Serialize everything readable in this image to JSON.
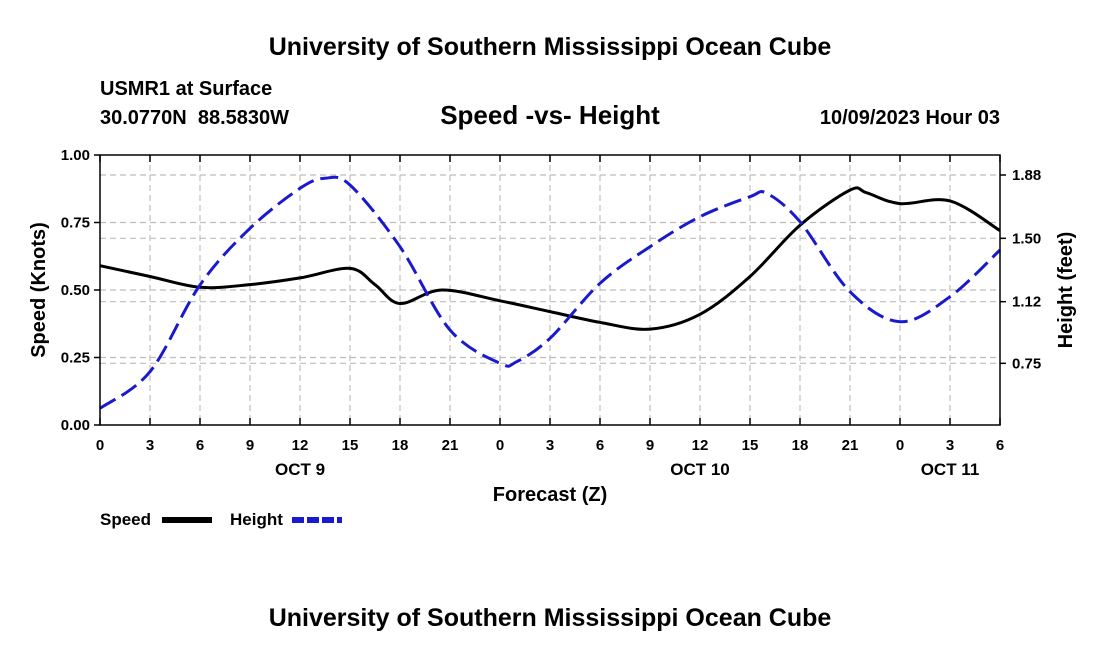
{
  "page": {
    "main_title": "University of Southern Mississippi Ocean Cube",
    "footer_title": "University of Southern Mississippi Ocean Cube"
  },
  "chart_data": {
    "type": "line",
    "title": "Speed -vs- Height",
    "station": "USMR1 at Surface",
    "coordinates": "30.0770N  88.5830W",
    "timestamp": "10/09/2023 Hour 03",
    "xlabel": "Forecast (Z)",
    "ylabel_left": "Speed (Knots)",
    "ylabel_right": "Height (feet)",
    "x_range": [
      0,
      54
    ],
    "x_unit": "hours from 00Z Oct 9",
    "x_ticks": [
      {
        "x": 0,
        "label": "0"
      },
      {
        "x": 3,
        "label": "3"
      },
      {
        "x": 6,
        "label": "6"
      },
      {
        "x": 9,
        "label": "9"
      },
      {
        "x": 12,
        "label": "12"
      },
      {
        "x": 15,
        "label": "15"
      },
      {
        "x": 18,
        "label": "18"
      },
      {
        "x": 21,
        "label": "21"
      },
      {
        "x": 24,
        "label": "0"
      },
      {
        "x": 27,
        "label": "3"
      },
      {
        "x": 30,
        "label": "6"
      },
      {
        "x": 33,
        "label": "9"
      },
      {
        "x": 36,
        "label": "12"
      },
      {
        "x": 39,
        "label": "15"
      },
      {
        "x": 42,
        "label": "18"
      },
      {
        "x": 45,
        "label": "21"
      },
      {
        "x": 48,
        "label": "0"
      },
      {
        "x": 51,
        "label": "3"
      },
      {
        "x": 54,
        "label": "6"
      }
    ],
    "date_labels": [
      {
        "x": 12,
        "label": "OCT 9"
      },
      {
        "x": 36,
        "label": "OCT 10"
      },
      {
        "x": 51,
        "label": "OCT 11"
      }
    ],
    "y_left": {
      "range": [
        0,
        1.0
      ],
      "ticks": [
        {
          "v": 0.0,
          "label": "0.00"
        },
        {
          "v": 0.25,
          "label": "0.25"
        },
        {
          "v": 0.5,
          "label": "0.50"
        },
        {
          "v": 0.75,
          "label": "0.75"
        },
        {
          "v": 1.0,
          "label": "1.00"
        }
      ]
    },
    "y_right": {
      "range": [
        0.38,
        2.0
      ],
      "ticks": [
        {
          "v": 0.75,
          "label": "0.75"
        },
        {
          "v": 1.12,
          "label": "1.12"
        },
        {
          "v": 1.5,
          "label": "1.50"
        },
        {
          "v": 1.88,
          "label": "1.88"
        }
      ]
    },
    "series": [
      {
        "name": "Speed",
        "axis": "left",
        "color": "#000000",
        "dash": "solid",
        "x": [
          0,
          3,
          6,
          9,
          12,
          15,
          16.5,
          18,
          20.5,
          24,
          27,
          30,
          33,
          36,
          39,
          42,
          45,
          46,
          48,
          51,
          54
        ],
        "values": [
          0.59,
          0.55,
          0.51,
          0.52,
          0.545,
          0.58,
          0.52,
          0.45,
          0.5,
          0.46,
          0.42,
          0.38,
          0.355,
          0.41,
          0.55,
          0.74,
          0.87,
          0.86,
          0.82,
          0.83,
          0.72
        ]
      },
      {
        "name": "Height",
        "axis": "right",
        "color": "#1a1acd",
        "dash": "dashed",
        "x": [
          0,
          3,
          6,
          9,
          12,
          13.5,
          15,
          18,
          21,
          24,
          25,
          27,
          30,
          33,
          36,
          39,
          40,
          42,
          45,
          48,
          51,
          54
        ],
        "values": [
          0.48,
          0.7,
          1.22,
          1.56,
          1.8,
          1.86,
          1.82,
          1.45,
          0.95,
          0.75,
          0.76,
          0.9,
          1.23,
          1.45,
          1.63,
          1.75,
          1.77,
          1.6,
          1.18,
          1.0,
          1.15,
          1.43
        ]
      }
    ],
    "legend": {
      "placement": "bottom-left",
      "entries": [
        {
          "label": "Speed",
          "color": "#000000",
          "style": "solid"
        },
        {
          "label": "Height",
          "color": "#1a1acd",
          "style": "dashed"
        }
      ]
    },
    "grid": true
  }
}
